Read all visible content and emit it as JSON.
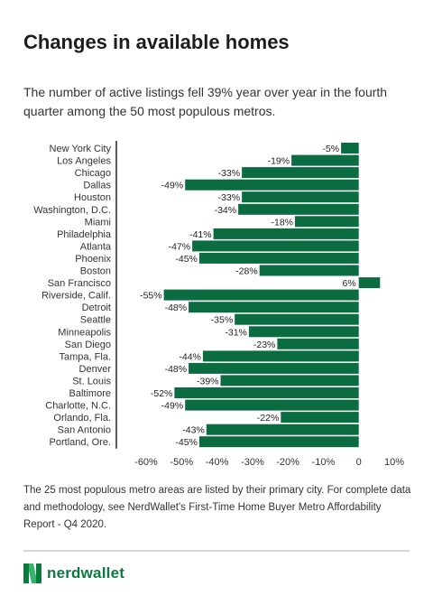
{
  "header": {
    "title": "Changes in available homes",
    "subtitle": "The number of active listings fell 39% year over year in the fourth quarter among the 50 most populous metros."
  },
  "footer": {
    "note": "The 25 most populous metro areas are listed by their primary city. For complete data and methodology, see NerdWallet's First-Time Home Buyer Metro Affordability Report - Q4 2020.",
    "brand": "nerdwallet"
  },
  "colors": {
    "bar": "#0b6b41",
    "brand": "#0c7a3f"
  },
  "chart_data": {
    "type": "bar",
    "orientation": "horizontal",
    "categories": [
      "New York City",
      "Los Angeles",
      "Chicago",
      "Dallas",
      "Houston",
      "Washington, D.C.",
      "Miami",
      "Philadelphia",
      "Atlanta",
      "Phoenix",
      "Boston",
      "San Francisco",
      "Riverside, Calif.",
      "Detroit",
      "Seattle",
      "Minneapolis",
      "San Diego",
      "Tampa, Fla.",
      "Denver",
      "St. Louis",
      "Baltimore",
      "Charlotte, N.C.",
      "Orlando, Fla.",
      "San Antonio",
      "Portland, Ore."
    ],
    "values": [
      -5,
      -19,
      -33,
      -49,
      -33,
      -34,
      -18,
      -41,
      -47,
      -45,
      -28,
      6,
      -55,
      -48,
      -35,
      -31,
      -23,
      -44,
      -48,
      -39,
      -52,
      -49,
      -22,
      -43,
      -45
    ],
    "value_labels": [
      "-5%",
      "-19%",
      "-33%",
      "-49%",
      "-33%",
      "-34%",
      "-18%",
      "-41%",
      "-47%",
      "-45%",
      "-28%",
      "6%",
      "-55%",
      "-48%",
      "-35%",
      "-31%",
      "-23%",
      "-44%",
      "-48%",
      "-39%",
      "-52%",
      "-49%",
      "-22%",
      "-43%",
      "-45%"
    ],
    "xlim": [
      -60,
      10
    ],
    "x_ticks": [
      -60,
      -50,
      -40,
      -30,
      -20,
      -10,
      0,
      10
    ],
    "x_tick_labels": [
      "-60%",
      "-50%",
      "-40%",
      "-30%",
      "-20%",
      "-10%",
      "0",
      "10%"
    ],
    "grid": false,
    "legend": "none"
  }
}
